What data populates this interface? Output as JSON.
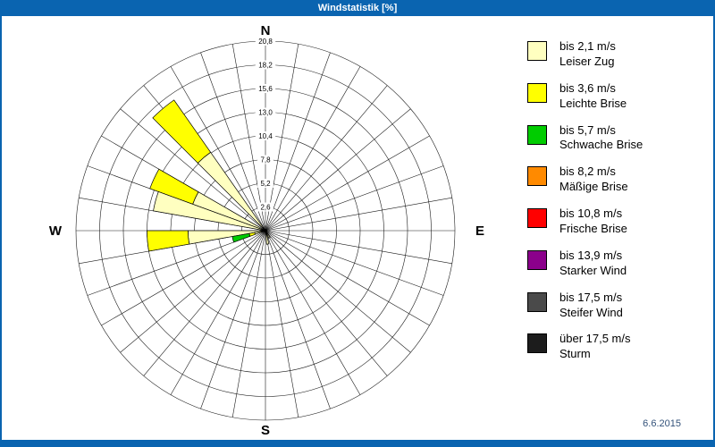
{
  "window": {
    "title": "Windstatistik [%]",
    "date": "6.6.2015"
  },
  "compass": {
    "north": "N",
    "east": "E",
    "south": "S",
    "west": "W"
  },
  "chart_data": {
    "type": "bar",
    "subtype": "wind-rose-polar",
    "title": "Windstatistik [%]",
    "units": "%",
    "sector_width_deg": 10,
    "radial_ticks": [
      "2,6",
      "5,2",
      "7,8",
      "10,4",
      "13,0",
      "15,6",
      "18,2",
      "20,8"
    ],
    "radial_max": 20.8,
    "grid": {
      "rings": 8,
      "spokes": 36
    },
    "classes": [
      {
        "label": "bis 2,1 m/s",
        "name": "Leiser Zug",
        "color": "#FFFFC0"
      },
      {
        "label": "bis 3,6 m/s",
        "name": "Leichte Brise",
        "color": "#FFFF00"
      },
      {
        "label": "bis 5,7 m/s",
        "name": "Schwache Brise",
        "color": "#00CC00"
      },
      {
        "label": "bis 8,2 m/s",
        "name": "Mäßige Brise",
        "color": "#FF8A00"
      },
      {
        "label": "bis 10,8 m/s",
        "name": "Frische Brise",
        "color": "#FF0000"
      },
      {
        "label": "bis 13,9 m/s",
        "name": "Starker Wind",
        "color": "#8B008B"
      },
      {
        "label": "bis 17,5 m/s",
        "name": "Steifer Wind",
        "color": "#4A4A4A"
      },
      {
        "label": "über 17,5 m/s",
        "name": "Sturm",
        "color": "#1C1C1C"
      }
    ],
    "petals": [
      {
        "direction_deg": 320,
        "values": [
          10.5,
          7.0,
          0,
          0,
          0,
          0,
          0,
          0
        ]
      },
      {
        "direction_deg": 295,
        "values": [
          8.5,
          5.0,
          0,
          0,
          0,
          0,
          0,
          0
        ]
      },
      {
        "direction_deg": 285,
        "values": [
          12.5,
          0,
          0,
          0,
          0,
          0,
          0,
          0
        ]
      },
      {
        "direction_deg": 265,
        "values": [
          8.5,
          4.5,
          0,
          0,
          0,
          0,
          0,
          0
        ]
      },
      {
        "direction_deg": 255,
        "values": [
          1.2,
          0.6,
          1.9,
          0,
          0,
          0,
          0,
          0
        ]
      },
      {
        "direction_deg": 170,
        "values": [
          1.5,
          0,
          0,
          0,
          0,
          0,
          0,
          0
        ]
      },
      {
        "direction_deg": 150,
        "values": [
          0.9,
          0,
          0,
          0,
          0,
          0,
          0,
          0
        ]
      }
    ]
  }
}
